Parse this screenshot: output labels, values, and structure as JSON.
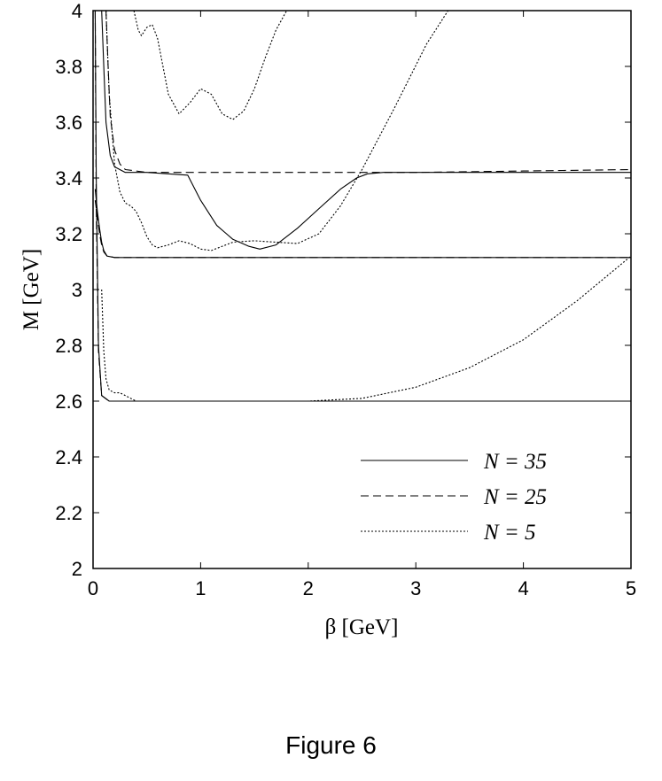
{
  "caption": "Figure 6",
  "chart_data": {
    "type": "line",
    "xlabel": "β [GeV]",
    "ylabel": "M [GeV]",
    "xlim": [
      0,
      5
    ],
    "ylim": [
      2,
      4
    ],
    "xticks": [
      0,
      1,
      2,
      3,
      4,
      5
    ],
    "yticks": [
      2,
      2.2,
      2.4,
      2.6,
      2.8,
      3,
      3.2,
      3.4,
      3.6,
      3.8,
      4
    ],
    "xtick_labels": [
      "0",
      "1",
      "2",
      "3",
      "4",
      "5"
    ],
    "ytick_labels": [
      "2",
      "2.2",
      "2.4",
      "2.6",
      "2.8",
      "3",
      "3.2",
      "3.4",
      "3.6",
      "3.8",
      "4"
    ],
    "grid": false,
    "legend_position": "bottom-right",
    "series": [
      {
        "name": "N = 35",
        "style": "solid",
        "curves": [
          {
            "x": [
              0.02,
              0.03,
              0.05,
              0.08,
              0.15,
              0.5,
              1.0,
              5.0
            ],
            "y": [
              4.0,
              3.4,
              2.8,
              2.62,
              2.6,
              2.6,
              2.6,
              2.6
            ]
          },
          {
            "x": [
              0.02,
              0.04,
              0.06,
              0.08,
              0.1,
              0.13,
              0.2,
              0.5,
              1.0,
              5.0
            ],
            "y": [
              3.36,
              3.28,
              3.22,
              3.17,
              3.14,
              3.12,
              3.115,
              3.115,
              3.115,
              3.115
            ]
          },
          {
            "x": [
              0.08,
              0.1,
              0.12,
              0.16,
              0.2,
              0.3,
              0.5,
              0.88,
              1.0,
              1.15,
              1.3,
              1.45,
              1.55,
              1.7,
              1.9,
              2.1,
              2.3,
              2.45,
              2.55,
              2.7,
              3.0,
              5.0
            ],
            "y": [
              4.0,
              3.8,
              3.6,
              3.48,
              3.44,
              3.42,
              3.42,
              3.41,
              3.32,
              3.23,
              3.18,
              3.155,
              3.145,
              3.16,
              3.22,
              3.29,
              3.36,
              3.4,
              3.415,
              3.42,
              3.42,
              3.42
            ]
          }
        ]
      },
      {
        "name": "N = 25",
        "style": "dashed",
        "curves": [
          {
            "x": [
              0.02,
              0.03,
              0.05,
              0.08,
              0.15,
              0.5,
              1.0,
              5.0
            ],
            "y": [
              4.0,
              3.3,
              2.78,
              2.62,
              2.6,
              2.6,
              2.6,
              2.6
            ]
          },
          {
            "x": [
              0.02,
              0.04,
              0.06,
              0.08,
              0.1,
              0.13,
              0.2,
              0.5,
              5.0
            ],
            "y": [
              3.32,
              3.26,
              3.2,
              3.16,
              3.135,
              3.12,
              3.115,
              3.115,
              3.115
            ]
          },
          {
            "x": [
              0.12,
              0.14,
              0.16,
              0.2,
              0.25,
              0.3,
              0.5,
              1.0,
              2.0,
              3.0,
              4.0,
              5.0
            ],
            "y": [
              4.0,
              3.8,
              3.62,
              3.5,
              3.45,
              3.43,
              3.42,
              3.42,
              3.42,
              3.42,
              3.425,
              3.43
            ]
          }
        ]
      },
      {
        "name": "N = 5",
        "style": "dotted",
        "curves": [
          {
            "x": [
              0.08,
              0.1,
              0.12,
              0.15,
              0.2,
              0.25,
              0.3,
              0.35,
              0.4,
              0.5,
              0.7,
              1.0,
              1.5,
              2.0,
              2.5,
              3.0,
              3.5,
              4.0,
              4.5,
              5.0
            ],
            "y": [
              3.0,
              2.78,
              2.68,
              2.64,
              2.63,
              2.63,
              2.62,
              2.61,
              2.6,
              2.6,
              2.6,
              2.6,
              2.6,
              2.6,
              2.61,
              2.65,
              2.72,
              2.82,
              2.96,
              3.12
            ]
          },
          {
            "x": [
              0.12,
              0.15,
              0.2,
              0.25,
              0.3,
              0.35,
              0.4,
              0.45,
              0.5,
              0.55,
              0.6,
              0.7,
              0.8,
              0.9,
              1.0,
              1.1,
              1.3,
              1.5,
              1.7,
              1.9,
              2.1,
              2.3,
              2.5,
              2.8,
              3.1,
              3.3
            ],
            "y": [
              4.0,
              3.7,
              3.45,
              3.35,
              3.31,
              3.3,
              3.28,
              3.24,
              3.19,
              3.16,
              3.15,
              3.16,
              3.175,
              3.165,
              3.145,
              3.14,
              3.17,
              3.175,
              3.17,
              3.165,
              3.2,
              3.3,
              3.43,
              3.65,
              3.88,
              4.0
            ]
          },
          {
            "x": [
              0.38,
              0.42,
              0.45,
              0.5,
              0.55,
              0.6,
              0.65,
              0.7,
              0.8,
              0.9,
              1.0,
              1.1,
              1.2,
              1.3,
              1.4,
              1.5,
              1.6,
              1.7,
              1.8
            ],
            "y": [
              4.0,
              3.93,
              3.91,
              3.94,
              3.95,
              3.9,
              3.8,
              3.7,
              3.63,
              3.67,
              3.72,
              3.7,
              3.63,
              3.61,
              3.64,
              3.72,
              3.83,
              3.93,
              4.0
            ]
          }
        ]
      }
    ]
  }
}
